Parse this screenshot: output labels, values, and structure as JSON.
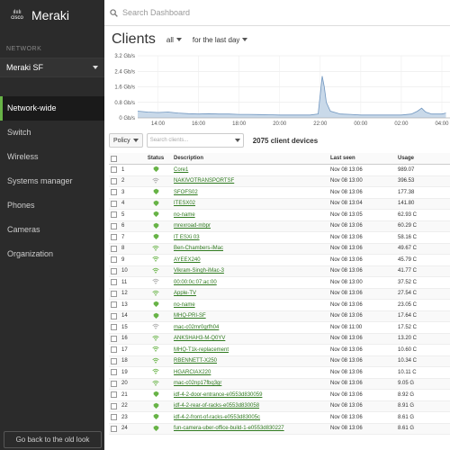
{
  "brand": {
    "cisco": "cisco",
    "meraki": "Meraki"
  },
  "sidebar": {
    "network_label": "NETWORK",
    "network_name": "Meraki SF",
    "items": [
      {
        "label": "Network-wide",
        "active": true
      },
      {
        "label": "Switch"
      },
      {
        "label": "Wireless"
      },
      {
        "label": "Systems manager"
      },
      {
        "label": "Phones"
      },
      {
        "label": "Cameras"
      },
      {
        "label": "Organization"
      }
    ],
    "old_look": "Go back to the old look"
  },
  "search": {
    "placeholder": "Search Dashboard"
  },
  "header": {
    "title": "Clients",
    "filter": "all",
    "range": "for the last day"
  },
  "chart_data": {
    "type": "area",
    "ylabels": [
      "3.2 Gb/s",
      "2.4 Gb/s",
      "1.6 Gb/s",
      "0.8 Gb/s",
      "0 Gb/s"
    ],
    "xlabels": [
      "14:00",
      "16:00",
      "18:00",
      "20:00",
      "22:00",
      "00:00",
      "02:00",
      "04:00"
    ],
    "ylim": [
      0,
      3.2
    ],
    "x": [
      13.0,
      13.5,
      14.0,
      14.5,
      15.0,
      15.5,
      16.0,
      16.5,
      17.0,
      17.5,
      18.0,
      18.5,
      19.0,
      19.5,
      20.0,
      20.5,
      21.0,
      21.5,
      21.9,
      22.0,
      22.1,
      22.2,
      22.3,
      22.5,
      23.0,
      23.5,
      0.0,
      0.5,
      1.0,
      1.5,
      2.0,
      2.5,
      2.8,
      3.0,
      3.2,
      3.5,
      4.0,
      4.2
    ],
    "values": [
      0.35,
      0.3,
      0.28,
      0.3,
      0.25,
      0.22,
      0.2,
      0.22,
      0.2,
      0.2,
      0.18,
      0.18,
      0.17,
      0.16,
      0.15,
      0.15,
      0.15,
      0.15,
      0.2,
      1.2,
      2.15,
      1.6,
      0.8,
      0.35,
      0.2,
      0.18,
      0.15,
      0.15,
      0.15,
      0.15,
      0.15,
      0.2,
      0.35,
      0.5,
      0.3,
      0.2,
      0.2,
      0.25
    ],
    "fill_color": "#c9d9e9",
    "line_color": "#6f95bf",
    "grid": true
  },
  "toolbar": {
    "policy": "Policy",
    "search_placeholder": "Search clients...",
    "count": "2075 client devices"
  },
  "table": {
    "headers": {
      "status": "Status",
      "description": "Description",
      "last_seen": "Last seen",
      "usage": "Usage"
    },
    "rows": [
      {
        "num": "1",
        "icon": "wired",
        "desc": "Core1",
        "seen": "Nov 08 13:06",
        "usage": "989.07"
      },
      {
        "num": "2",
        "icon": "wifi-gray",
        "desc": "NAKIVOTRANSPORTSF",
        "seen": "Nov 08 13:00",
        "usage": "396.53"
      },
      {
        "num": "3",
        "icon": "wired",
        "desc": "SFOFS02",
        "seen": "Nov 08 13:06",
        "usage": "177.38"
      },
      {
        "num": "4",
        "icon": "wired",
        "desc": "ITESX02",
        "seen": "Nov 08 13:04",
        "usage": "141.80"
      },
      {
        "num": "5",
        "icon": "wired",
        "desc": "no-name",
        "seen": "Nov 08 13:05",
        "usage": "62.93 C"
      },
      {
        "num": "6",
        "icon": "wired",
        "desc": "mrexroad-mbpr",
        "seen": "Nov 08 13:06",
        "usage": "60.29 C"
      },
      {
        "num": "7",
        "icon": "wired",
        "desc": "IT ESXi 03",
        "seen": "Nov 08 13:06",
        "usage": "58.16 C"
      },
      {
        "num": "8",
        "icon": "wifi",
        "desc": "Ben-Chambers-iMac",
        "seen": "Nov 08 13:06",
        "usage": "49.67 C"
      },
      {
        "num": "9",
        "icon": "wifi",
        "desc": "AYEEX240",
        "seen": "Nov 08 13:06",
        "usage": "45.79 C"
      },
      {
        "num": "10",
        "icon": "wifi",
        "desc": "Vikram-Singh-iMac-3",
        "seen": "Nov 08 13:06",
        "usage": "41.77 C"
      },
      {
        "num": "11",
        "icon": "wifi-gray",
        "desc": "00:00:0c:07:ac:00",
        "seen": "Nov 08 13:00",
        "usage": "37.52 C"
      },
      {
        "num": "12",
        "icon": "wifi",
        "desc": "Apple-TV",
        "seen": "Nov 08 13:06",
        "usage": "27.54 C"
      },
      {
        "num": "13",
        "icon": "wired",
        "desc": "no-name",
        "seen": "Nov 08 13:06",
        "usage": "23.05 C"
      },
      {
        "num": "14",
        "icon": "wired",
        "desc": "MHQ-PRI-SF",
        "seen": "Nov 08 13:06",
        "usage": "17.64 C"
      },
      {
        "num": "15",
        "icon": "wifi-gray",
        "desc": "mac-c02mr0grfh04",
        "seen": "Nov 08 11:00",
        "usage": "17.52 C"
      },
      {
        "num": "16",
        "icon": "wifi",
        "desc": "ANKSHAH3-M-Q0YV",
        "seen": "Nov 08 13:06",
        "usage": "13.20 C"
      },
      {
        "num": "17",
        "icon": "wifi",
        "desc": "MHQ-T1k-replacement",
        "seen": "Nov 08 13:06",
        "usage": "10.60 C"
      },
      {
        "num": "18",
        "icon": "wifi",
        "desc": "RBENNETT-X250",
        "seen": "Nov 08 13:06",
        "usage": "10.34 C"
      },
      {
        "num": "19",
        "icon": "wifi",
        "desc": "HGARCIAX220",
        "seen": "Nov 08 13:06",
        "usage": "10.11 C"
      },
      {
        "num": "20",
        "icon": "wifi",
        "desc": "mac-c02np17fbq3gr",
        "seen": "Nov 08 13:06",
        "usage": "9.05 G"
      },
      {
        "num": "21",
        "icon": "wired",
        "desc": "idf-4-2-door-entrance-e0553d830059",
        "seen": "Nov 08 13:06",
        "usage": "8.92 G"
      },
      {
        "num": "22",
        "icon": "wired",
        "desc": "idf-4-2-rear-of-racks-e0553d830058",
        "seen": "Nov 08 13:06",
        "usage": "8.91 G"
      },
      {
        "num": "23",
        "icon": "wired",
        "desc": "idf-4-2-front-of-racks-e0553d83005c",
        "seen": "Nov 08 13:06",
        "usage": "8.61 G"
      },
      {
        "num": "24",
        "icon": "wired",
        "desc": "fun-camera-uber-office-build-1-e0553d830227",
        "seen": "Nov 08 13:06",
        "usage": "8.61 G"
      }
    ]
  },
  "colors": {
    "accent": "#67b346",
    "link": "#2f7a1f",
    "sidebar": "#2b2b2b"
  }
}
